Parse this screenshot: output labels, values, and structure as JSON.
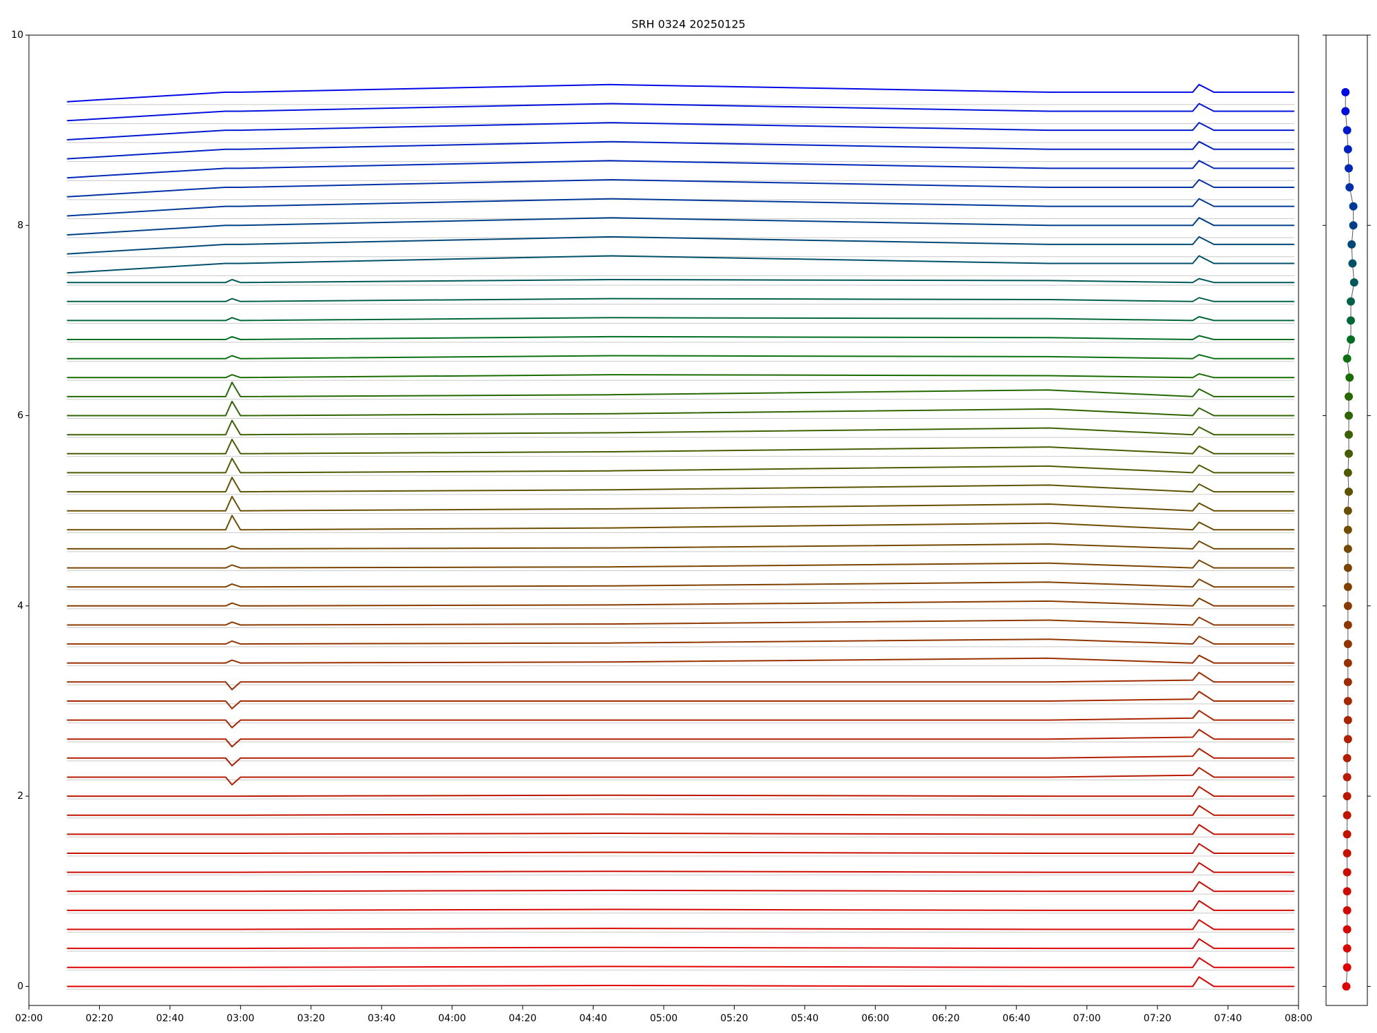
{
  "chart_data": [
    {
      "type": "line",
      "title": "SRH 0324 20250125",
      "xlim": [
        2,
        8
      ],
      "ylim": [
        -0.2,
        10
      ],
      "xticks": [
        {
          "value": 2,
          "label": "02:00"
        },
        {
          "value": 2.3333,
          "label": "02:20"
        },
        {
          "value": 2.6667,
          "label": "02:40"
        },
        {
          "value": 3,
          "label": "03:00"
        },
        {
          "value": 3.3333,
          "label": "03:20"
        },
        {
          "value": 3.6667,
          "label": "03:40"
        },
        {
          "value": 4,
          "label": "04:00"
        },
        {
          "value": 4.3333,
          "label": "04:20"
        },
        {
          "value": 4.6667,
          "label": "04:40"
        },
        {
          "value": 5,
          "label": "05:00"
        },
        {
          "value": 5.3333,
          "label": "05:20"
        },
        {
          "value": 5.6667,
          "label": "05:40"
        },
        {
          "value": 6,
          "label": "06:00"
        },
        {
          "value": 6.3333,
          "label": "06:20"
        },
        {
          "value": 6.6667,
          "label": "06:40"
        },
        {
          "value": 7,
          "label": "07:00"
        },
        {
          "value": 7.3333,
          "label": "07:20"
        },
        {
          "value": 7.6667,
          "label": "07:40"
        },
        {
          "value": 8,
          "label": "08:00"
        }
      ],
      "yticks": [
        0,
        2,
        4,
        6,
        8,
        10
      ],
      "x": [
        2.18,
        2.93,
        2.96,
        3.0,
        4.75,
        6.82,
        7.5,
        7.53,
        7.6,
        7.98
      ],
      "series": [
        {
          "color": "#e00000",
          "values": [
            0,
            0,
            0,
            0,
            0.01,
            0,
            0,
            0.1,
            0,
            0
          ]
        },
        {
          "color": "#e00000",
          "values": [
            0.2,
            0.2,
            0.2,
            0.2,
            0.21,
            0.2,
            0.2,
            0.3,
            0.2,
            0.2
          ]
        },
        {
          "color": "#dc0400",
          "values": [
            0.4,
            0.4,
            0.4,
            0.4,
            0.41,
            0.4,
            0.4,
            0.5,
            0.4,
            0.4
          ]
        },
        {
          "color": "#d80600",
          "values": [
            0.6,
            0.6,
            0.6,
            0.6,
            0.61,
            0.6,
            0.6,
            0.7,
            0.6,
            0.6
          ]
        },
        {
          "color": "#d40800",
          "values": [
            0.8,
            0.8,
            0.8,
            0.8,
            0.81,
            0.8,
            0.8,
            0.9,
            0.8,
            0.8
          ]
        },
        {
          "color": "#d00a00",
          "values": [
            1.0,
            1.0,
            1.0,
            1.0,
            1.01,
            1.0,
            1.0,
            1.1,
            1.0,
            1.0
          ]
        },
        {
          "color": "#cc0c00",
          "values": [
            1.2,
            1.2,
            1.2,
            1.2,
            1.21,
            1.2,
            1.2,
            1.3,
            1.2,
            1.2
          ]
        },
        {
          "color": "#c81000",
          "values": [
            1.4,
            1.4,
            1.4,
            1.4,
            1.41,
            1.4,
            1.4,
            1.5,
            1.4,
            1.4
          ]
        },
        {
          "color": "#c41200",
          "values": [
            1.6,
            1.6,
            1.6,
            1.6,
            1.61,
            1.6,
            1.6,
            1.7,
            1.6,
            1.6
          ]
        },
        {
          "color": "#c01400",
          "values": [
            1.8,
            1.8,
            1.8,
            1.8,
            1.81,
            1.8,
            1.8,
            1.9,
            1.8,
            1.8
          ]
        },
        {
          "color": "#bc1600",
          "values": [
            2.0,
            2.0,
            2.0,
            2.0,
            2.01,
            2.0,
            2.0,
            2.1,
            2.0,
            2.0
          ]
        },
        {
          "color": "#b81a00",
          "values": [
            2.2,
            2.2,
            2.12,
            2.2,
            2.2,
            2.2,
            2.22,
            2.3,
            2.2,
            2.2
          ]
        },
        {
          "color": "#b41c00",
          "values": [
            2.4,
            2.4,
            2.32,
            2.4,
            2.4,
            2.4,
            2.42,
            2.5,
            2.4,
            2.4
          ]
        },
        {
          "color": "#b02000",
          "values": [
            2.6,
            2.6,
            2.52,
            2.6,
            2.6,
            2.6,
            2.62,
            2.7,
            2.6,
            2.6
          ]
        },
        {
          "color": "#aa2400",
          "values": [
            2.8,
            2.8,
            2.72,
            2.8,
            2.8,
            2.8,
            2.82,
            2.9,
            2.8,
            2.8
          ]
        },
        {
          "color": "#a42800",
          "values": [
            3.0,
            3.0,
            2.92,
            3.0,
            3.0,
            3.0,
            3.02,
            3.1,
            3.0,
            3.0
          ]
        },
        {
          "color": "#9e2c00",
          "values": [
            3.2,
            3.2,
            3.12,
            3.2,
            3.2,
            3.2,
            3.22,
            3.3,
            3.2,
            3.2
          ]
        },
        {
          "color": "#983000",
          "values": [
            3.4,
            3.4,
            3.43,
            3.4,
            3.41,
            3.45,
            3.4,
            3.48,
            3.4,
            3.4
          ]
        },
        {
          "color": "#923400",
          "values": [
            3.6,
            3.6,
            3.63,
            3.6,
            3.61,
            3.65,
            3.6,
            3.68,
            3.6,
            3.6
          ]
        },
        {
          "color": "#8c3800",
          "values": [
            3.8,
            3.8,
            3.83,
            3.8,
            3.81,
            3.85,
            3.8,
            3.88,
            3.8,
            3.8
          ]
        },
        {
          "color": "#863c00",
          "values": [
            4.0,
            4.0,
            4.03,
            4.0,
            4.01,
            4.05,
            4.0,
            4.08,
            4.0,
            4.0
          ]
        },
        {
          "color": "#804000",
          "values": [
            4.2,
            4.2,
            4.23,
            4.2,
            4.21,
            4.25,
            4.2,
            4.28,
            4.2,
            4.2
          ]
        },
        {
          "color": "#7a4400",
          "values": [
            4.4,
            4.4,
            4.43,
            4.4,
            4.41,
            4.45,
            4.4,
            4.48,
            4.4,
            4.4
          ]
        },
        {
          "color": "#744800",
          "values": [
            4.6,
            4.6,
            4.63,
            4.6,
            4.61,
            4.65,
            4.6,
            4.68,
            4.6,
            4.6
          ]
        },
        {
          "color": "#6e4c00",
          "values": [
            4.8,
            4.8,
            4.95,
            4.8,
            4.82,
            4.87,
            4.8,
            4.88,
            4.8,
            4.8
          ]
        },
        {
          "color": "#684e00",
          "values": [
            5.0,
            5.0,
            5.15,
            5.0,
            5.02,
            5.07,
            5.0,
            5.08,
            5.0,
            5.0
          ]
        },
        {
          "color": "#5a5400",
          "values": [
            5.2,
            5.2,
            5.35,
            5.2,
            5.22,
            5.27,
            5.2,
            5.28,
            5.2,
            5.2
          ]
        },
        {
          "color": "#505800",
          "values": [
            5.4,
            5.4,
            5.55,
            5.4,
            5.42,
            5.47,
            5.4,
            5.48,
            5.4,
            5.4
          ]
        },
        {
          "color": "#465c00",
          "values": [
            5.6,
            5.6,
            5.75,
            5.6,
            5.62,
            5.67,
            5.6,
            5.68,
            5.6,
            5.6
          ]
        },
        {
          "color": "#3c6000",
          "values": [
            5.8,
            5.8,
            5.95,
            5.8,
            5.82,
            5.87,
            5.8,
            5.88,
            5.8,
            5.8
          ]
        },
        {
          "color": "#306400",
          "values": [
            6.0,
            6.0,
            6.15,
            6.0,
            6.02,
            6.07,
            6.0,
            6.08,
            6.0,
            6.0
          ]
        },
        {
          "color": "#246800",
          "values": [
            6.2,
            6.2,
            6.35,
            6.2,
            6.22,
            6.27,
            6.2,
            6.28,
            6.2,
            6.2
          ]
        },
        {
          "color": "#186c00",
          "values": [
            6.4,
            6.4,
            6.43,
            6.4,
            6.43,
            6.42,
            6.4,
            6.44,
            6.4,
            6.4
          ]
        },
        {
          "color": "#0c7010",
          "values": [
            6.6,
            6.6,
            6.63,
            6.6,
            6.63,
            6.62,
            6.6,
            6.64,
            6.6,
            6.6
          ]
        },
        {
          "color": "#006e20",
          "values": [
            6.8,
            6.8,
            6.83,
            6.8,
            6.83,
            6.82,
            6.8,
            6.84,
            6.8,
            6.8
          ]
        },
        {
          "color": "#006838",
          "values": [
            7.0,
            7.0,
            7.03,
            7.0,
            7.03,
            7.02,
            7.0,
            7.04,
            7.0,
            7.0
          ]
        },
        {
          "color": "#006048",
          "values": [
            7.2,
            7.2,
            7.23,
            7.2,
            7.23,
            7.22,
            7.2,
            7.24,
            7.2,
            7.2
          ]
        },
        {
          "color": "#005858",
          "values": [
            7.4,
            7.4,
            7.43,
            7.4,
            7.43,
            7.42,
            7.4,
            7.44,
            7.4,
            7.4
          ]
        },
        {
          "color": "#005068",
          "values": [
            7.5,
            7.6,
            7.6,
            7.6,
            7.68,
            7.6,
            7.6,
            7.68,
            7.6,
            7.6
          ]
        },
        {
          "color": "#004878",
          "values": [
            7.7,
            7.8,
            7.8,
            7.8,
            7.88,
            7.8,
            7.8,
            7.88,
            7.8,
            7.8
          ]
        },
        {
          "color": "#004088",
          "values": [
            7.9,
            8.0,
            8.0,
            8.0,
            8.08,
            8.0,
            8.0,
            8.08,
            8.0,
            8.0
          ]
        },
        {
          "color": "#003898",
          "values": [
            8.1,
            8.2,
            8.2,
            8.2,
            8.28,
            8.2,
            8.2,
            8.28,
            8.2,
            8.2
          ]
        },
        {
          "color": "#0030a8",
          "values": [
            8.3,
            8.4,
            8.4,
            8.4,
            8.48,
            8.4,
            8.4,
            8.48,
            8.4,
            8.4
          ]
        },
        {
          "color": "#0028b8",
          "values": [
            8.5,
            8.6,
            8.6,
            8.6,
            8.68,
            8.6,
            8.6,
            8.68,
            8.6,
            8.6
          ]
        },
        {
          "color": "#0020c4",
          "values": [
            8.7,
            8.8,
            8.8,
            8.8,
            8.88,
            8.8,
            8.8,
            8.88,
            8.8,
            8.8
          ]
        },
        {
          "color": "#0018d0",
          "values": [
            8.9,
            9.0,
            9.0,
            9.0,
            9.08,
            9.0,
            9.0,
            9.08,
            9.0,
            9.0
          ]
        },
        {
          "color": "#0010dc",
          "values": [
            9.1,
            9.2,
            9.2,
            9.2,
            9.28,
            9.2,
            9.2,
            9.28,
            9.2,
            9.2
          ]
        },
        {
          "color": "#0008e8",
          "values": [
            9.3,
            9.4,
            9.4,
            9.4,
            9.48,
            9.4,
            9.4,
            9.48,
            9.4,
            9.4
          ]
        }
      ]
    },
    {
      "type": "scatter",
      "xlim": [
        0,
        1
      ],
      "ylim": [
        -0.2,
        10
      ],
      "yticks": [
        0,
        2,
        4,
        6,
        8,
        10
      ],
      "x": [
        0.49,
        0.51,
        0.51,
        0.51,
        0.51,
        0.51,
        0.51,
        0.51,
        0.51,
        0.51,
        0.51,
        0.51,
        0.51,
        0.53,
        0.53,
        0.53,
        0.53,
        0.53,
        0.53,
        0.53,
        0.53,
        0.53,
        0.53,
        0.53,
        0.53,
        0.53,
        0.55,
        0.53,
        0.55,
        0.55,
        0.55,
        0.55,
        0.57,
        0.51,
        0.6,
        0.6,
        0.6,
        0.68,
        0.64,
        0.62,
        0.66,
        0.66,
        0.57,
        0.55,
        0.53,
        0.51,
        0.47,
        0.47
      ],
      "y": [
        0,
        0.2,
        0.4,
        0.6,
        0.8,
        1.0,
        1.2,
        1.4,
        1.6,
        1.8,
        2.0,
        2.2,
        2.4,
        2.6,
        2.8,
        3.0,
        3.2,
        3.4,
        3.6,
        3.8,
        4.0,
        4.2,
        4.4,
        4.6,
        4.8,
        5.0,
        5.2,
        5.4,
        5.6,
        5.8,
        6.0,
        6.2,
        6.4,
        6.6,
        6.8,
        7.0,
        7.2,
        7.4,
        7.6,
        7.8,
        8.0,
        8.2,
        8.4,
        8.6,
        8.8,
        9.0,
        9.2,
        9.4
      ]
    }
  ]
}
